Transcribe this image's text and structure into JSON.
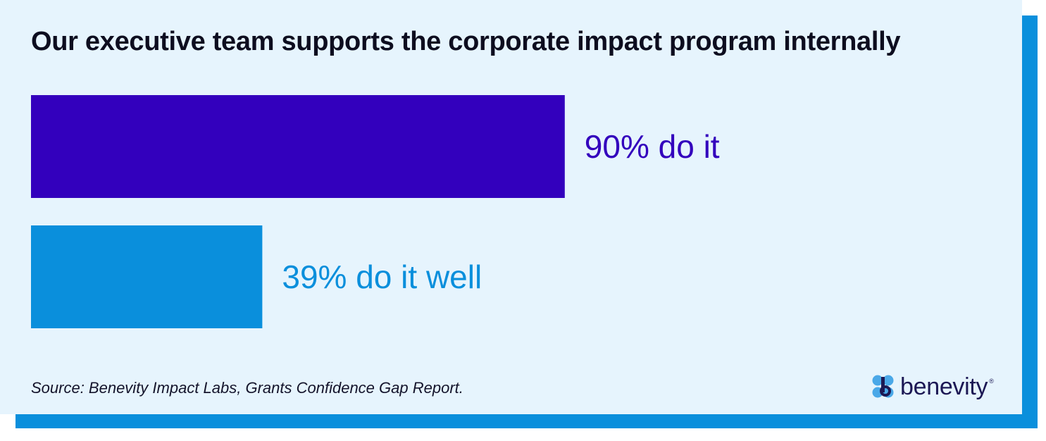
{
  "colors": {
    "primary_bar": "#3300bd",
    "secondary_bar": "#0a8fdc",
    "background": "#e6f4fd",
    "shadow": "#0a8fdc",
    "text_dark": "#0d0d1f"
  },
  "chart_data": {
    "type": "bar",
    "orientation": "horizontal",
    "title": "Our executive team supports the corporate impact program internally",
    "categories": [
      "do it",
      "do it well"
    ],
    "values": [
      90,
      39
    ],
    "value_unit": "%",
    "labels": [
      "90% do it",
      "39% do it well"
    ],
    "xlim": [
      0,
      100
    ],
    "grid": false,
    "legend": "none"
  },
  "source": "Source: Benevity Impact Labs, Grants Confidence Gap Report.",
  "logo": {
    "text": "benevity",
    "trademark": "®",
    "icon": "benevity-logo-icon"
  }
}
